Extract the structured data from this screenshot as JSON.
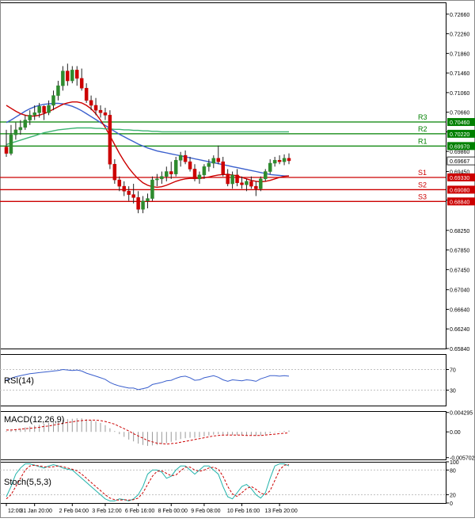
{
  "chart_data": [
    {
      "type": "candlestick",
      "panel": "price",
      "ylim": [
        0.6584,
        0.729
      ],
      "yticks": [
        0.7266,
        0.7226,
        0.7186,
        0.7146,
        0.7106,
        0.7066,
        0.7026,
        0.6986,
        0.6945,
        0.68865,
        0.6825,
        0.6785,
        0.6745,
        0.6704,
        0.6664,
        0.6624,
        0.6584
      ],
      "ytick_labels": [
        "0.72660",
        "0.72260",
        "0.71860",
        "0.71460",
        "0.71060",
        "0.70660",
        "0.70260",
        "0.69860",
        "0.69450",
        "0.68865",
        "0.68250",
        "0.67850",
        "0.67450",
        "0.67040",
        "0.66640",
        "0.66240",
        "0.65840"
      ],
      "candles": [
        {
          "o": 0.6995,
          "h": 0.703,
          "l": 0.6975,
          "c": 0.6982
        },
        {
          "o": 0.6982,
          "h": 0.704,
          "l": 0.6978,
          "c": 0.702
        },
        {
          "o": 0.702,
          "h": 0.7045,
          "l": 0.701,
          "c": 0.703
        },
        {
          "o": 0.703,
          "h": 0.705,
          "l": 0.702,
          "c": 0.7035
        },
        {
          "o": 0.7035,
          "h": 0.706,
          "l": 0.703,
          "c": 0.705
        },
        {
          "o": 0.705,
          "h": 0.707,
          "l": 0.704,
          "c": 0.706
        },
        {
          "o": 0.706,
          "h": 0.708,
          "l": 0.705,
          "c": 0.7065
        },
        {
          "o": 0.7065,
          "h": 0.7085,
          "l": 0.7055,
          "c": 0.7078
        },
        {
          "o": 0.7078,
          "h": 0.708,
          "l": 0.705,
          "c": 0.7065
        },
        {
          "o": 0.7065,
          "h": 0.709,
          "l": 0.706,
          "c": 0.708
        },
        {
          "o": 0.708,
          "h": 0.711,
          "l": 0.707,
          "c": 0.71
        },
        {
          "o": 0.71,
          "h": 0.713,
          "l": 0.709,
          "c": 0.712
        },
        {
          "o": 0.712,
          "h": 0.716,
          "l": 0.711,
          "c": 0.715
        },
        {
          "o": 0.715,
          "h": 0.7165,
          "l": 0.712,
          "c": 0.713
        },
        {
          "o": 0.713,
          "h": 0.716,
          "l": 0.7125,
          "c": 0.7152
        },
        {
          "o": 0.7152,
          "h": 0.716,
          "l": 0.712,
          "c": 0.7135
        },
        {
          "o": 0.7135,
          "h": 0.7155,
          "l": 0.711,
          "c": 0.7115
        },
        {
          "o": 0.7115,
          "h": 0.7125,
          "l": 0.7085,
          "c": 0.709
        },
        {
          "o": 0.709,
          "h": 0.71,
          "l": 0.707,
          "c": 0.708
        },
        {
          "o": 0.708,
          "h": 0.7095,
          "l": 0.706,
          "c": 0.707
        },
        {
          "o": 0.707,
          "h": 0.708,
          "l": 0.7055,
          "c": 0.7065
        },
        {
          "o": 0.7065,
          "h": 0.7075,
          "l": 0.705,
          "c": 0.706
        },
        {
          "o": 0.706,
          "h": 0.707,
          "l": 0.695,
          "c": 0.696
        },
        {
          "o": 0.696,
          "h": 0.697,
          "l": 0.692,
          "c": 0.6928
        },
        {
          "o": 0.6928,
          "h": 0.6935,
          "l": 0.6905,
          "c": 0.6915
        },
        {
          "o": 0.6915,
          "h": 0.6925,
          "l": 0.6895,
          "c": 0.6905
        },
        {
          "o": 0.6905,
          "h": 0.6915,
          "l": 0.6885,
          "c": 0.6898
        },
        {
          "o": 0.6898,
          "h": 0.692,
          "l": 0.688,
          "c": 0.6892
        },
        {
          "o": 0.6892,
          "h": 0.6905,
          "l": 0.686,
          "c": 0.6868
        },
        {
          "o": 0.6868,
          "h": 0.6895,
          "l": 0.686,
          "c": 0.6885
        },
        {
          "o": 0.6885,
          "h": 0.69,
          "l": 0.687,
          "c": 0.689
        },
        {
          "o": 0.689,
          "h": 0.6935,
          "l": 0.6885,
          "c": 0.6928
        },
        {
          "o": 0.6928,
          "h": 0.694,
          "l": 0.6915,
          "c": 0.693
        },
        {
          "o": 0.693,
          "h": 0.6945,
          "l": 0.692,
          "c": 0.6935
        },
        {
          "o": 0.6935,
          "h": 0.6955,
          "l": 0.6925,
          "c": 0.6945
        },
        {
          "o": 0.6945,
          "h": 0.6965,
          "l": 0.693,
          "c": 0.694
        },
        {
          "o": 0.694,
          "h": 0.6975,
          "l": 0.6935,
          "c": 0.6968
        },
        {
          "o": 0.6968,
          "h": 0.6985,
          "l": 0.6955,
          "c": 0.6978
        },
        {
          "o": 0.6978,
          "h": 0.6988,
          "l": 0.696,
          "c": 0.6965
        },
        {
          "o": 0.6965,
          "h": 0.6975,
          "l": 0.6945,
          "c": 0.695
        },
        {
          "o": 0.695,
          "h": 0.696,
          "l": 0.6925,
          "c": 0.693
        },
        {
          "o": 0.693,
          "h": 0.6945,
          "l": 0.692,
          "c": 0.6938
        },
        {
          "o": 0.6938,
          "h": 0.696,
          "l": 0.693,
          "c": 0.6955
        },
        {
          "o": 0.6955,
          "h": 0.697,
          "l": 0.6945,
          "c": 0.6962
        },
        {
          "o": 0.6962,
          "h": 0.6978,
          "l": 0.6952,
          "c": 0.6972
        },
        {
          "o": 0.6972,
          "h": 0.6998,
          "l": 0.696,
          "c": 0.6965
        },
        {
          "o": 0.6965,
          "h": 0.6975,
          "l": 0.6935,
          "c": 0.694
        },
        {
          "o": 0.694,
          "h": 0.695,
          "l": 0.6915,
          "c": 0.692
        },
        {
          "o": 0.692,
          "h": 0.6945,
          "l": 0.691,
          "c": 0.6938
        },
        {
          "o": 0.6938,
          "h": 0.695,
          "l": 0.6915,
          "c": 0.6922
        },
        {
          "o": 0.6922,
          "h": 0.6935,
          "l": 0.691,
          "c": 0.6918
        },
        {
          "o": 0.6918,
          "h": 0.693,
          "l": 0.6905,
          "c": 0.6925
        },
        {
          "o": 0.6925,
          "h": 0.6935,
          "l": 0.691,
          "c": 0.6915
        },
        {
          "o": 0.6915,
          "h": 0.6925,
          "l": 0.6895,
          "c": 0.691
        },
        {
          "o": 0.691,
          "h": 0.6935,
          "l": 0.6905,
          "c": 0.693
        },
        {
          "o": 0.693,
          "h": 0.695,
          "l": 0.6925,
          "c": 0.6945
        },
        {
          "o": 0.6945,
          "h": 0.697,
          "l": 0.694,
          "c": 0.6962
        },
        {
          "o": 0.6962,
          "h": 0.6975,
          "l": 0.6955,
          "c": 0.6968
        },
        {
          "o": 0.6968,
          "h": 0.6978,
          "l": 0.696,
          "c": 0.6965
        },
        {
          "o": 0.6965,
          "h": 0.698,
          "l": 0.6958,
          "c": 0.6972
        },
        {
          "o": 0.6972,
          "h": 0.6982,
          "l": 0.696,
          "c": 0.6967
        }
      ],
      "series": [
        {
          "color": "#3a5fcd",
          "values": [
            0.7045,
            0.705,
            0.7056,
            0.7062,
            0.7068,
            0.7073,
            0.7077,
            0.708,
            0.7082,
            0.7083,
            0.7084,
            0.7084,
            0.7083,
            0.7081,
            0.7078,
            0.7074,
            0.7069,
            0.7063,
            0.7057,
            0.7051,
            0.7045,
            0.7039,
            0.7033,
            0.7027,
            0.7021,
            0.7016,
            0.7011,
            0.7006,
            0.7001,
            0.6997,
            0.6993,
            0.699,
            0.6987,
            0.6985,
            0.6983,
            0.6981,
            0.6979,
            0.6977,
            0.6975,
            0.6973,
            0.6971,
            0.6969,
            0.6967,
            0.6965,
            0.6963,
            0.6961,
            0.6959,
            0.6957,
            0.6955,
            0.6953,
            0.6951,
            0.6949,
            0.6947,
            0.6945,
            0.6943,
            0.6941,
            0.6939,
            0.6938,
            0.6937,
            0.6936,
            0.6936
          ]
        },
        {
          "color": "#cc0000",
          "values": [
            0.708,
            0.7074,
            0.7068,
            0.7063,
            0.706,
            0.7058,
            0.7058,
            0.706,
            0.7063,
            0.7067,
            0.7072,
            0.7077,
            0.7082,
            0.7085,
            0.7087,
            0.7087,
            0.7085,
            0.708,
            0.7073,
            0.7063,
            0.705,
            0.7035,
            0.7018,
            0.7,
            0.6982,
            0.6966,
            0.6952,
            0.694,
            0.693,
            0.6922,
            0.6917,
            0.6914,
            0.6913,
            0.6914,
            0.6917,
            0.6921,
            0.6925,
            0.6928,
            0.693,
            0.6931,
            0.6931,
            0.6931,
            0.6932,
            0.6934,
            0.6936,
            0.6938,
            0.6939,
            0.6939,
            0.6938,
            0.6936,
            0.6933,
            0.693,
            0.6927,
            0.6925,
            0.6924,
            0.6925,
            0.6927,
            0.693,
            0.6933,
            0.6935,
            0.6936
          ]
        },
        {
          "color": "#3cb371",
          "values": [
            0.7,
            0.7003,
            0.7006,
            0.7009,
            0.7012,
            0.7015,
            0.7018,
            0.7021,
            0.7024,
            0.7026,
            0.7028,
            0.703,
            0.7031,
            0.7032,
            0.7033,
            0.7034,
            0.7034,
            0.7034,
            0.7034,
            0.7033,
            0.7033,
            0.7032,
            0.7032,
            0.7031,
            0.7031,
            0.703,
            0.703,
            0.7029,
            0.7029,
            0.7028,
            0.7028,
            0.7027,
            0.7027,
            0.7026,
            0.7026,
            0.7026,
            0.7026,
            0.7026,
            0.7026,
            0.7026,
            0.7026,
            0.7026,
            0.7026,
            0.7026,
            0.7026,
            0.7026,
            0.7026,
            0.7026,
            0.7026,
            0.7026,
            0.7026,
            0.7026,
            0.7026,
            0.7026,
            0.7026,
            0.7026,
            0.7026,
            0.7026,
            0.7026,
            0.7026,
            0.7026
          ]
        }
      ],
      "levels": [
        {
          "name": "R3",
          "value": 0.7046,
          "label": "0.70460",
          "color": "#008000"
        },
        {
          "name": "R2",
          "value": 0.7022,
          "label": "0.70220",
          "color": "#008000"
        },
        {
          "name": "R1",
          "value": 0.6997,
          "label": "0.69970",
          "color": "#008000"
        },
        {
          "name": "S1",
          "value": 0.6933,
          "label": "0.69330",
          "color": "#cc0000"
        },
        {
          "name": "S2",
          "value": 0.6908,
          "label": "0.69080",
          "color": "#cc0000"
        },
        {
          "name": "S3",
          "value": 0.6884,
          "label": "0.68840",
          "color": "#cc0000"
        }
      ],
      "current_price": {
        "value": 0.69667,
        "label": "0.69667"
      },
      "xtick_labels": [
        "12:00",
        "31 Jan 20:00",
        "2 Feb 04:00",
        "3 Feb 12:00",
        "6 Feb 16:00",
        "8 Feb 00:00",
        "9 Feb 08:00",
        "10 Feb 16:00",
        "13 Feb 20:00"
      ]
    },
    {
      "type": "line",
      "panel": "indicator",
      "title": "RSI(14)",
      "ylim": [
        0,
        100
      ],
      "yticks": [
        70,
        30
      ],
      "ytick_labels": [
        "70",
        "30"
      ],
      "color": "#3a5fcd",
      "values": [
        50,
        53,
        56,
        58,
        60,
        62,
        63,
        64,
        65,
        66,
        67,
        68,
        70,
        69,
        68,
        69,
        67,
        63,
        60,
        57,
        54,
        51,
        45,
        41,
        38,
        36,
        34,
        34,
        31,
        33,
        35,
        41,
        43,
        45,
        48,
        49,
        53,
        56,
        57,
        54,
        49,
        50,
        54,
        56,
        58,
        55,
        50,
        47,
        50,
        49,
        48,
        50,
        49,
        47,
        52,
        55,
        58,
        58,
        57,
        58,
        57
      ]
    },
    {
      "type": "bar",
      "panel": "indicator",
      "title": "MACD(12,26,9)",
      "ylim": [
        -0.0061,
        0.0046
      ],
      "yticks": [
        0.004295,
        0.0,
        -0.005702
      ],
      "ytick_labels": [
        "0.004295",
        "0.00",
        "-0.005702"
      ],
      "bar_color": "#999999",
      "signal_color": "#cc0000",
      "values": [
        0.0002,
        0.0003,
        0.0005,
        0.0007,
        0.001,
        0.0012,
        0.0014,
        0.0016,
        0.0018,
        0.002,
        0.0022,
        0.0024,
        0.0027,
        0.0028,
        0.0029,
        0.003,
        0.003,
        0.0028,
        0.0026,
        0.0023,
        0.002,
        0.0015,
        0.0008,
        0.0002,
        -0.0005,
        -0.0011,
        -0.0017,
        -0.0021,
        -0.0026,
        -0.0029,
        -0.0031,
        -0.003,
        -0.0029,
        -0.0027,
        -0.0025,
        -0.0022,
        -0.0019,
        -0.0016,
        -0.0014,
        -0.0013,
        -0.0013,
        -0.0012,
        -0.001,
        -0.0008,
        -0.0006,
        -0.0005,
        -0.0006,
        -0.0007,
        -0.0007,
        -0.0007,
        -0.0008,
        -0.0008,
        -0.0008,
        -0.0009,
        -0.0008,
        -0.0006,
        -0.0003,
        -0.0001,
        0.0001,
        0.0002,
        0.0003
      ],
      "signal": [
        0.0004,
        0.0004,
        0.0005,
        0.0006,
        0.0007,
        0.0008,
        0.0009,
        0.001,
        0.0012,
        0.0013,
        0.0015,
        0.0017,
        0.0019,
        0.0021,
        0.0022,
        0.0024,
        0.0025,
        0.0026,
        0.0026,
        0.0026,
        0.0025,
        0.0023,
        0.002,
        0.0017,
        0.0012,
        0.0007,
        0.0002,
        -0.0004,
        -0.0009,
        -0.0014,
        -0.0019,
        -0.0022,
        -0.0025,
        -0.0026,
        -0.0027,
        -0.0026,
        -0.0025,
        -0.0023,
        -0.0021,
        -0.0019,
        -0.0017,
        -0.0015,
        -0.0013,
        -0.0011,
        -0.0009,
        -0.0008,
        -0.0007,
        -0.0007,
        -0.0007,
        -0.0007,
        -0.0007,
        -0.0008,
        -0.0008,
        -0.0008,
        -0.0008,
        -0.0007,
        -0.0006,
        -0.0005,
        -0.0004,
        -0.0003,
        -0.0002
      ]
    },
    {
      "type": "line",
      "panel": "indicator",
      "title": "Stoch(5,5,3)",
      "ylim": [
        0,
        100
      ],
      "yticks": [
        100,
        80,
        20,
        0
      ],
      "ytick_labels": [
        "100",
        "80",
        "20",
        "0"
      ],
      "k_color": "#20b2aa",
      "d_color": "#cc0000",
      "k": [
        15,
        40,
        70,
        85,
        95,
        95,
        92,
        88,
        85,
        90,
        93,
        90,
        85,
        82,
        80,
        70,
        60,
        50,
        40,
        30,
        20,
        10,
        5,
        5,
        10,
        8,
        5,
        10,
        20,
        40,
        70,
        80,
        80,
        75,
        60,
        65,
        80,
        90,
        90,
        80,
        70,
        80,
        90,
        90,
        80,
        70,
        40,
        15,
        10,
        25,
        40,
        45,
        35,
        20,
        12,
        25,
        60,
        90,
        95,
        95,
        90
      ],
      "d": [
        10,
        20,
        40,
        60,
        80,
        90,
        92,
        90,
        88,
        87,
        88,
        90,
        88,
        85,
        82,
        78,
        70,
        60,
        50,
        40,
        30,
        20,
        12,
        8,
        7,
        8,
        7,
        8,
        12,
        25,
        45,
        65,
        77,
        78,
        72,
        66,
        68,
        78,
        87,
        87,
        80,
        77,
        80,
        85,
        87,
        82,
        65,
        40,
        22,
        16,
        25,
        35,
        40,
        33,
        24,
        20,
        30,
        55,
        80,
        92,
        93
      ]
    }
  ]
}
